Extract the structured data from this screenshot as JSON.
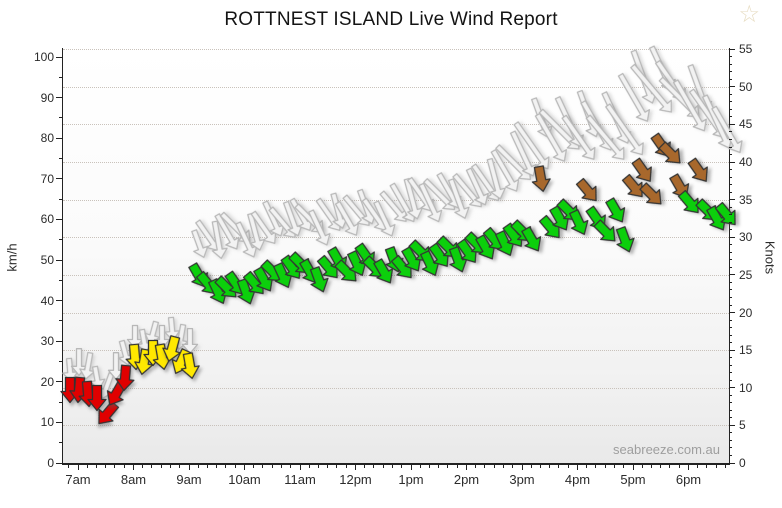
{
  "title": "ROTTNEST ISLAND Live Wind Report",
  "watermark": "seabreeze.com.au",
  "icons": {
    "favorite_star": "☆"
  },
  "axes": {
    "left_label": "km/h",
    "right_label": "Knots",
    "left_ticks": [
      0,
      10,
      20,
      30,
      40,
      50,
      60,
      70,
      80,
      90,
      100
    ],
    "right_ticks": [
      0,
      5,
      10,
      15,
      20,
      25,
      30,
      35,
      40,
      45,
      50,
      55
    ],
    "x_labels": [
      "7am",
      "8am",
      "9am",
      "10am",
      "11am",
      "12pm",
      "1pm",
      "2pm",
      "3pm",
      "4pm",
      "5pm",
      "6pm"
    ]
  },
  "colors": {
    "red": "#e00000",
    "yellow": "#ffe800",
    "green": "#0ccf0c",
    "brown": "#a8682c",
    "outline": "#333333",
    "gust_fill": "#f2f2f2",
    "gust_stroke": "#b8b8b8",
    "grid": "#c9c2bb",
    "axis": "#222222",
    "star": "#e7ddc3",
    "watermark_text": "#9e9e9e"
  },
  "chart_data": {
    "type": "wind-arrows",
    "title": "ROTTNEST ISLAND Live Wind Report",
    "x_axis": "time of day (10-minute intervals)",
    "y_left": {
      "label": "km/h",
      "range": [
        0,
        100
      ]
    },
    "y_right": {
      "label": "Knots",
      "range": [
        0,
        55
      ]
    },
    "grid": "dotted horizontal every 5 knots",
    "legend_position": "none",
    "series_names": [
      "average wind (colored by strength)",
      "gusts (light gray)"
    ],
    "points_format": [
      "hour_decimal",
      "avg_kmh",
      "gust_kmh",
      "strength_color",
      "avg_dir_deg_from_down",
      "gust_dir_deg_from_down"
    ],
    "points": [
      [
        6.83,
        18,
        23,
        "red",
        0,
        -5
      ],
      [
        7.0,
        18,
        25,
        "red",
        5,
        0
      ],
      [
        7.17,
        17,
        24,
        "red",
        -5,
        10
      ],
      [
        7.33,
        16,
        21,
        "red",
        0,
        -10
      ],
      [
        7.5,
        12,
        19,
        "red",
        40,
        20
      ],
      [
        7.67,
        17,
        24,
        "red",
        30,
        0
      ],
      [
        7.83,
        21,
        27,
        "red",
        5,
        -15
      ],
      [
        8.0,
        26,
        31,
        "yellow",
        -5,
        0
      ],
      [
        8.17,
        25,
        30,
        "yellow",
        10,
        -10
      ],
      [
        8.33,
        27,
        32,
        "yellow",
        0,
        15
      ],
      [
        8.5,
        26,
        31,
        "yellow",
        -10,
        0
      ],
      [
        8.67,
        28,
        33,
        "yellow",
        15,
        -5
      ],
      [
        8.83,
        25,
        31,
        "yellow",
        25,
        10
      ],
      [
        9.0,
        24,
        30,
        "yellow",
        -10,
        0
      ],
      [
        9.17,
        46,
        54,
        "green",
        -30,
        -20
      ],
      [
        9.33,
        44,
        56,
        "green",
        -40,
        -35
      ],
      [
        9.5,
        42,
        55,
        "green",
        -25,
        -10
      ],
      [
        9.67,
        43,
        57,
        "green",
        -45,
        -30
      ],
      [
        9.83,
        44,
        58,
        "green",
        -35,
        -45
      ],
      [
        10.0,
        42,
        55,
        "green",
        -20,
        -25
      ],
      [
        10.17,
        44,
        57,
        "green",
        -40,
        -15
      ],
      [
        10.33,
        45,
        58,
        "green",
        -30,
        -35
      ],
      [
        10.5,
        47,
        60,
        "green",
        -45,
        -25
      ],
      [
        10.67,
        46,
        59,
        "green",
        -25,
        -40
      ],
      [
        10.83,
        48,
        60,
        "green",
        -35,
        -20
      ],
      [
        11.0,
        49,
        61,
        "green",
        -45,
        -30
      ],
      [
        11.17,
        47,
        60,
        "green",
        -30,
        -45
      ],
      [
        11.33,
        45,
        58,
        "green",
        -20,
        -25
      ],
      [
        11.5,
        48,
        61,
        "green",
        -40,
        -35
      ],
      [
        11.67,
        50,
        62,
        "green",
        -30,
        -15
      ],
      [
        11.83,
        47,
        60,
        "green",
        -45,
        -30
      ],
      [
        12.0,
        49,
        62,
        "green",
        -25,
        -40
      ],
      [
        12.17,
        51,
        63,
        "green",
        -35,
        -20
      ],
      [
        12.33,
        48,
        61,
        "green",
        -45,
        -35
      ],
      [
        12.5,
        47,
        60,
        "green",
        -30,
        -25
      ],
      [
        12.67,
        50,
        63,
        "green",
        -20,
        -40
      ],
      [
        12.83,
        48,
        64,
        "green",
        -40,
        -30
      ],
      [
        13.0,
        50,
        65,
        "green",
        -30,
        -15
      ],
      [
        13.17,
        52,
        66,
        "green",
        -45,
        -35
      ],
      [
        13.33,
        49,
        64,
        "green",
        -25,
        -25
      ],
      [
        13.5,
        51,
        66,
        "green",
        -35,
        -45
      ],
      [
        13.67,
        53,
        67,
        "green",
        -45,
        -30
      ],
      [
        13.83,
        50,
        65,
        "green",
        -20,
        -20
      ],
      [
        14.0,
        52,
        67,
        "green",
        -35,
        -40
      ],
      [
        14.17,
        54,
        68,
        "green",
        -45,
        -25
      ],
      [
        14.33,
        53,
        69,
        "green",
        -30,
        -35
      ],
      [
        14.5,
        55,
        70,
        "green",
        -40,
        -15
      ],
      [
        14.67,
        54,
        72,
        "green",
        -25,
        -30
      ],
      [
        14.83,
        56,
        74,
        "green",
        -35,
        -45
      ],
      [
        15.0,
        57,
        76,
        "green",
        -45,
        -25
      ],
      [
        15.17,
        55,
        78,
        "green",
        -30,
        -35
      ],
      [
        15.33,
        70,
        85,
        "brown",
        -10,
        -20
      ],
      [
        15.5,
        58,
        80,
        "green",
        -40,
        -30
      ],
      [
        15.67,
        60,
        82,
        "green",
        -30,
        -45
      ],
      [
        15.83,
        62,
        84,
        "green",
        -45,
        -25
      ],
      [
        16.0,
        59,
        80,
        "green",
        -25,
        -35
      ],
      [
        16.17,
        67,
        86,
        "brown",
        -40,
        -20
      ],
      [
        16.33,
        60,
        83,
        "green",
        -35,
        -30
      ],
      [
        16.5,
        57,
        80,
        "green",
        -45,
        -40
      ],
      [
        16.67,
        62,
        85,
        "green",
        -30,
        -25
      ],
      [
        16.83,
        55,
        82,
        "green",
        -20,
        -35
      ],
      [
        17.0,
        68,
        90,
        "brown",
        -40,
        -30
      ],
      [
        17.17,
        72,
        95,
        "brown",
        -35,
        -20
      ],
      [
        17.33,
        66,
        92,
        "brown",
        -45,
        -40
      ],
      [
        17.5,
        78,
        97,
        "brown",
        -35,
        -25
      ],
      [
        17.67,
        76,
        94,
        "brown",
        -45,
        -35
      ],
      [
        17.83,
        68,
        90,
        "brown",
        -30,
        -45
      ],
      [
        18.0,
        64,
        88,
        "green",
        -40,
        -30
      ],
      [
        18.17,
        72,
        92,
        "brown",
        -35,
        -20
      ],
      [
        18.33,
        62,
        86,
        "green",
        -45,
        -35
      ],
      [
        18.5,
        60,
        84,
        "green",
        -30,
        -25
      ],
      [
        18.67,
        61,
        82,
        "green",
        -40,
        -30
      ]
    ]
  }
}
